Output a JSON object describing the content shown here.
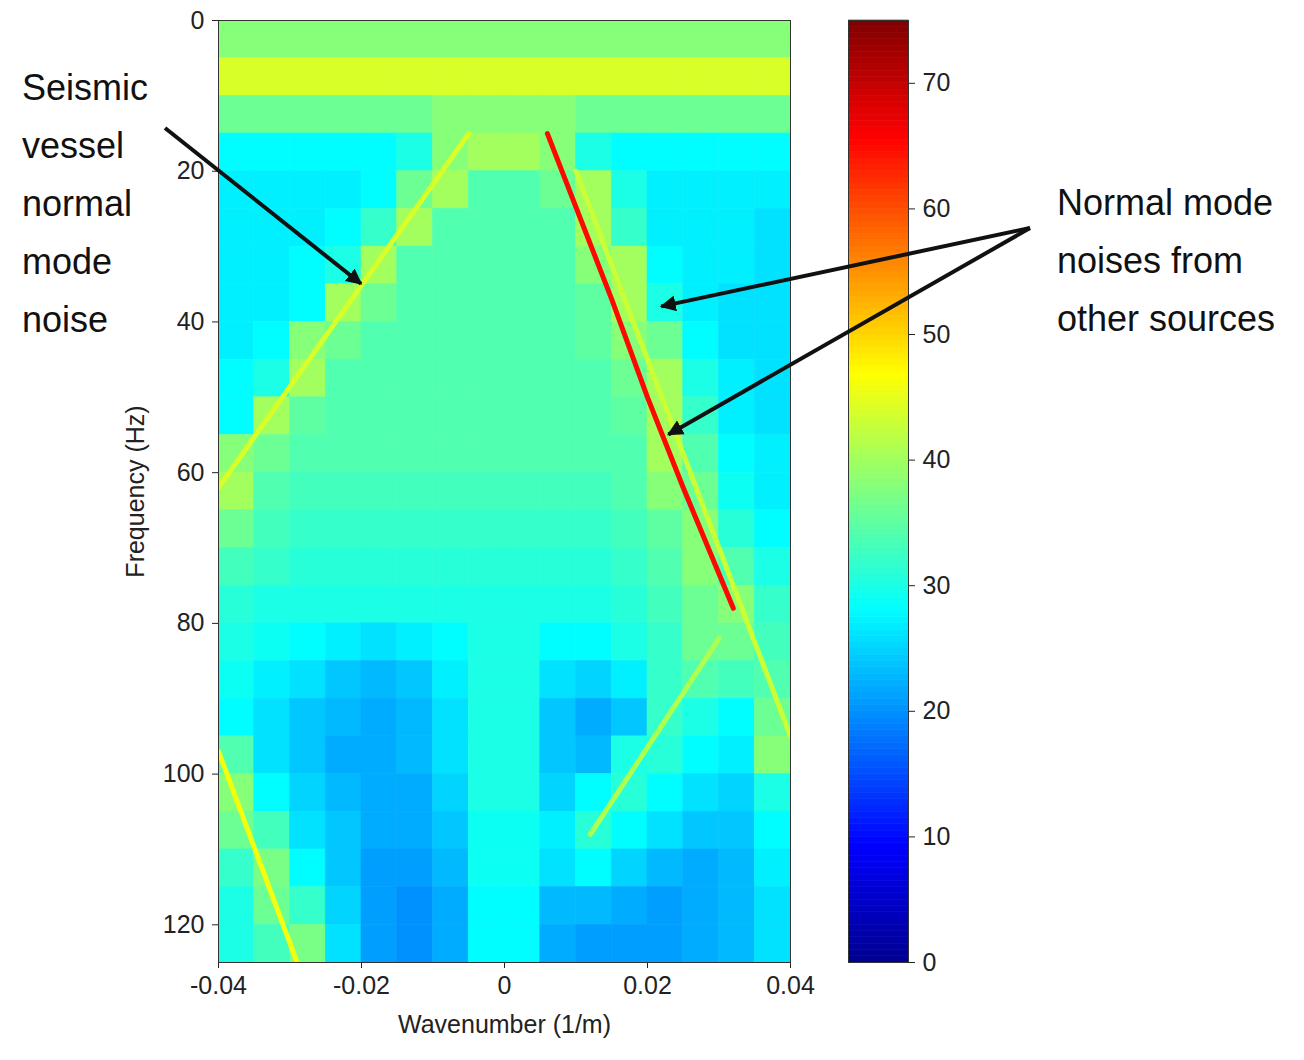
{
  "chart_data": {
    "type": "heatmap",
    "xlabel": "Wavenumber (1/m)",
    "ylabel": "Frequency (Hz)",
    "xlim": [
      -0.04,
      0.04
    ],
    "xticks": [
      -0.04,
      -0.02,
      0,
      0.02,
      0.04
    ],
    "ylim": [
      0,
      125
    ],
    "yticks": [
      0,
      20,
      40,
      60,
      80,
      100,
      120
    ],
    "colorbar": {
      "lim": [
        0,
        75
      ],
      "ticks": [
        0,
        10,
        20,
        30,
        40,
        50,
        60,
        70
      ]
    },
    "cells": {
      "wavenumber_edges": [
        -0.04,
        -0.035,
        -0.03,
        -0.025,
        -0.02,
        -0.015,
        -0.01,
        -0.005,
        0,
        0.005,
        0.01,
        0.015,
        0.02,
        0.025,
        0.03,
        0.035,
        0.04
      ],
      "frequency_edges": [
        0,
        5,
        10,
        15,
        20,
        25,
        30,
        35,
        40,
        45,
        50,
        55,
        60,
        65,
        70,
        75,
        80,
        85,
        90,
        95,
        100,
        105,
        110,
        115,
        120,
        125
      ],
      "values": [
        [
          38,
          38,
          38,
          38,
          38,
          38,
          38,
          38,
          38,
          38,
          38,
          38,
          38,
          38,
          38,
          38
        ],
        [
          44,
          44,
          44,
          44,
          44,
          44,
          44,
          44,
          44,
          44,
          44,
          44,
          44,
          44,
          44,
          44
        ],
        [
          36,
          36,
          36,
          36,
          36,
          36,
          38,
          38,
          38,
          38,
          36,
          36,
          36,
          36,
          36,
          36
        ],
        [
          28,
          28,
          28,
          28,
          28,
          30,
          38,
          40,
          40,
          38,
          30,
          28,
          28,
          28,
          28,
          28
        ],
        [
          27,
          27,
          27,
          27,
          28,
          36,
          40,
          34,
          34,
          36,
          40,
          30,
          27,
          27,
          27,
          27
        ],
        [
          27,
          27,
          27,
          28,
          32,
          40,
          34,
          34,
          34,
          34,
          40,
          32,
          27,
          27,
          27,
          26
        ],
        [
          27,
          27,
          28,
          30,
          40,
          34,
          34,
          34,
          34,
          34,
          38,
          40,
          28,
          27,
          27,
          26
        ],
        [
          27,
          27,
          28,
          40,
          36,
          34,
          34,
          34,
          34,
          34,
          35,
          40,
          30,
          27,
          26,
          26
        ],
        [
          27,
          28,
          38,
          36,
          34,
          34,
          34,
          34,
          34,
          34,
          35,
          38,
          36,
          28,
          26,
          26
        ],
        [
          28,
          30,
          40,
          34,
          34,
          34,
          34,
          34,
          34,
          34,
          34,
          36,
          40,
          30,
          27,
          26
        ],
        [
          28,
          40,
          35,
          34,
          34,
          34,
          34,
          34,
          34,
          34,
          34,
          35,
          40,
          32,
          27,
          26
        ],
        [
          38,
          36,
          34,
          34,
          34,
          34,
          34,
          34,
          34,
          34,
          34,
          34,
          40,
          34,
          28,
          27
        ],
        [
          40,
          34,
          33,
          33,
          33,
          33,
          33,
          33,
          33,
          33,
          33,
          34,
          38,
          36,
          29,
          27
        ],
        [
          36,
          33,
          32,
          32,
          32,
          32,
          32,
          32,
          32,
          32,
          32,
          33,
          35,
          38,
          31,
          28
        ],
        [
          33,
          32,
          31,
          31,
          31,
          31,
          31,
          31,
          31,
          31,
          31,
          32,
          34,
          38,
          34,
          30
        ],
        [
          31,
          30,
          30,
          30,
          30,
          30,
          30,
          30,
          30,
          30,
          30,
          31,
          33,
          36,
          38,
          32
        ],
        [
          30,
          29,
          28,
          27,
          26,
          27,
          28,
          30,
          30,
          28,
          28,
          30,
          32,
          36,
          36,
          33
        ],
        [
          29,
          27,
          26,
          24,
          23,
          24,
          27,
          30,
          30,
          26,
          25,
          27,
          32,
          34,
          33,
          34
        ],
        [
          28,
          26,
          24,
          23,
          22,
          23,
          26,
          30,
          30,
          24,
          22,
          24,
          32,
          30,
          28,
          36
        ],
        [
          34,
          26,
          24,
          22,
          22,
          23,
          26,
          30,
          30,
          24,
          23,
          30,
          31,
          28,
          27,
          38
        ],
        [
          38,
          28,
          25,
          23,
          22,
          22,
          25,
          30,
          30,
          25,
          28,
          31,
          28,
          26,
          25,
          30
        ],
        [
          36,
          33,
          26,
          24,
          22,
          22,
          24,
          29,
          29,
          27,
          31,
          28,
          26,
          24,
          24,
          28
        ],
        [
          32,
          37,
          28,
          24,
          21,
          21,
          23,
          29,
          29,
          26,
          28,
          25,
          23,
          22,
          23,
          27
        ],
        [
          30,
          36,
          32,
          25,
          21,
          20,
          22,
          28,
          28,
          23,
          23,
          22,
          21,
          22,
          23,
          26
        ],
        [
          30,
          33,
          37,
          26,
          21,
          20,
          22,
          28,
          28,
          22,
          21,
          21,
          21,
          22,
          23,
          26
        ]
      ]
    },
    "streaks": [
      {
        "x": [
          0.006,
          0.015,
          0.02,
          0.025,
          0.032
        ],
        "y": [
          15,
          37,
          50,
          62,
          78
        ],
        "value": 65
      },
      {
        "x": [
          -0.005,
          -0.04
        ],
        "y": [
          15,
          62
        ],
        "value": 44
      },
      {
        "x": [
          0.01,
          0.04
        ],
        "y": [
          20,
          95
        ],
        "value": 43
      },
      {
        "x": [
          -0.04,
          -0.029
        ],
        "y": [
          97,
          125
        ],
        "value": 46
      },
      {
        "x": [
          0.03,
          0.012
        ],
        "y": [
          82,
          108
        ],
        "value": 41
      }
    ],
    "annotations": [
      {
        "text": "Seismic vessel normal mode noise",
        "targets": [
          {
            "x": -0.02,
            "y": 35
          }
        ]
      },
      {
        "text": "Normal mode noises from other sources",
        "targets": [
          {
            "x": 0.022,
            "y": 38
          },
          {
            "x": 0.023,
            "y": 55
          }
        ]
      }
    ]
  }
}
